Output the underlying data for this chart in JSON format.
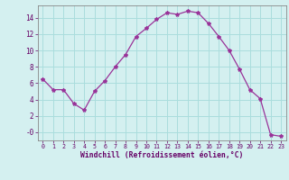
{
  "x": [
    0,
    1,
    2,
    3,
    4,
    5,
    6,
    7,
    8,
    9,
    10,
    11,
    12,
    13,
    14,
    15,
    16,
    17,
    18,
    19,
    20,
    21,
    22,
    23
  ],
  "y": [
    6.5,
    5.2,
    5.2,
    3.5,
    2.7,
    5.0,
    6.3,
    8.0,
    9.5,
    11.7,
    12.7,
    13.8,
    14.6,
    14.4,
    14.8,
    14.6,
    13.3,
    11.7,
    10.0,
    7.7,
    5.2,
    4.1,
    -0.3,
    -0.5
  ],
  "line_color": "#993399",
  "marker": "*",
  "marker_size": 3,
  "bg_color": "#d4f0f0",
  "grid_color": "#aadddd",
  "xlabel": "Windchill (Refroidissement éolien,°C)",
  "xlabel_color": "#660066",
  "tick_color": "#660066",
  "ylim": [
    -1.0,
    15.5
  ],
  "xlim": [
    -0.5,
    23.5
  ],
  "yticks": [
    0,
    2,
    4,
    6,
    8,
    10,
    12,
    14
  ],
  "xticks": [
    0,
    1,
    2,
    3,
    4,
    5,
    6,
    7,
    8,
    9,
    10,
    11,
    12,
    13,
    14,
    15,
    16,
    17,
    18,
    19,
    20,
    21,
    22,
    23
  ],
  "ytick_labels": [
    "-0",
    "2",
    "4",
    "6",
    "8",
    "10",
    "12",
    "14"
  ],
  "spine_color": "#888888"
}
